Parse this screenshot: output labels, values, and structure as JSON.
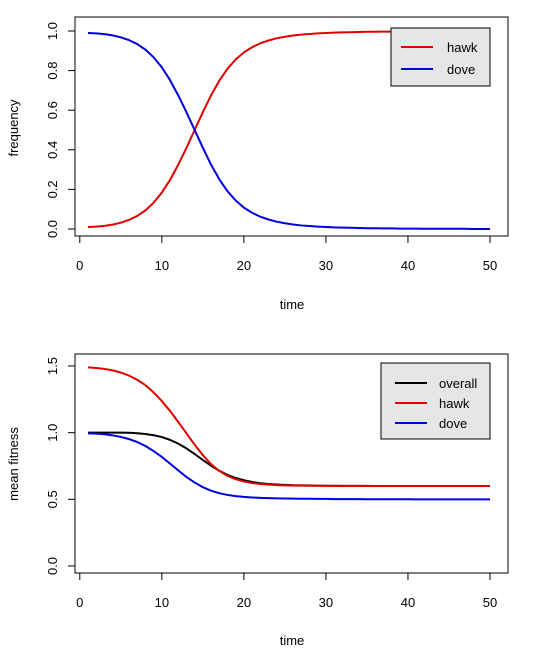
{
  "chart_data": [
    {
      "type": "line",
      "title": "",
      "xlabel": "time",
      "ylabel": "frequency",
      "xlim": [
        1,
        50
      ],
      "ylim": [
        0,
        1
      ],
      "x_ticks": [
        "0",
        "10",
        "20",
        "30",
        "40",
        "50"
      ],
      "y_ticks": [
        "0.0",
        "0.2",
        "0.4",
        "0.6",
        "0.8",
        "1.0"
      ],
      "legend": {
        "position": "top-right",
        "background": "#e6e6e6"
      },
      "x": [
        1,
        2,
        3,
        4,
        5,
        6,
        7,
        8,
        9,
        10,
        11,
        12,
        13,
        14,
        15,
        16,
        17,
        18,
        19,
        20,
        21,
        22,
        23,
        24,
        25,
        26,
        27,
        28,
        29,
        30,
        31,
        32,
        33,
        34,
        35,
        36,
        37,
        38,
        39,
        40,
        41,
        42,
        43,
        44,
        45,
        46,
        47,
        48,
        49,
        50
      ],
      "series": [
        {
          "name": "hawk",
          "color": "#e00000",
          "values": [
            0.01,
            0.012,
            0.016,
            0.022,
            0.032,
            0.046,
            0.066,
            0.094,
            0.133,
            0.184,
            0.248,
            0.325,
            0.41,
            0.5,
            0.59,
            0.675,
            0.749,
            0.809,
            0.856,
            0.892,
            0.918,
            0.938,
            0.952,
            0.963,
            0.971,
            0.977,
            0.982,
            0.985,
            0.988,
            0.99,
            0.992,
            0.993,
            0.994,
            0.995,
            0.996,
            0.996,
            0.997,
            0.997,
            0.998,
            0.998,
            0.998,
            0.999,
            0.999,
            0.999,
            0.999,
            0.999,
            0.999,
            1.0,
            1.0,
            1.0
          ]
        },
        {
          "name": "dove",
          "color": "#0000e0",
          "values": [
            0.99,
            0.988,
            0.984,
            0.978,
            0.968,
            0.954,
            0.934,
            0.906,
            0.867,
            0.816,
            0.752,
            0.675,
            0.59,
            0.5,
            0.41,
            0.325,
            0.251,
            0.191,
            0.144,
            0.108,
            0.082,
            0.062,
            0.048,
            0.037,
            0.029,
            0.023,
            0.018,
            0.015,
            0.012,
            0.01,
            0.008,
            0.007,
            0.006,
            0.005,
            0.004,
            0.004,
            0.003,
            0.003,
            0.002,
            0.002,
            0.002,
            0.001,
            0.001,
            0.001,
            0.001,
            0.001,
            0.001,
            0.0,
            0.0,
            0.0
          ]
        }
      ]
    },
    {
      "type": "line",
      "title": "",
      "xlabel": "time",
      "ylabel": "mean fitness",
      "xlim": [
        1,
        50
      ],
      "ylim": [
        0,
        1.5
      ],
      "x_ticks": [
        "0",
        "10",
        "20",
        "30",
        "40",
        "50"
      ],
      "y_ticks": [
        "0.0",
        "0.5",
        "1.0",
        "1.5"
      ],
      "legend": {
        "position": "top-right",
        "background": "#e6e6e6"
      },
      "x": [
        1,
        2,
        3,
        4,
        5,
        6,
        7,
        8,
        9,
        10,
        11,
        12,
        13,
        14,
        15,
        16,
        17,
        18,
        19,
        20,
        21,
        22,
        23,
        24,
        25,
        26,
        27,
        28,
        29,
        30,
        31,
        32,
        33,
        34,
        35,
        36,
        37,
        38,
        39,
        40,
        41,
        42,
        43,
        44,
        45,
        46,
        47,
        48,
        49,
        50
      ],
      "series": [
        {
          "name": "overall",
          "color": "#000000",
          "values": [
            1.0,
            1.0,
            1.0,
            1.0,
            1.0,
            0.999,
            0.996,
            0.99,
            0.981,
            0.967,
            0.946,
            0.918,
            0.882,
            0.84,
            0.795,
            0.752,
            0.714,
            0.683,
            0.66,
            0.643,
            0.63,
            0.621,
            0.615,
            0.611,
            0.608,
            0.606,
            0.605,
            0.604,
            0.603,
            0.602,
            0.602,
            0.601,
            0.601,
            0.601,
            0.601,
            0.6,
            0.6,
            0.6,
            0.6,
            0.6,
            0.6,
            0.6,
            0.6,
            0.6,
            0.6,
            0.6,
            0.6,
            0.6,
            0.6,
            0.6
          ]
        },
        {
          "name": "hawk",
          "color": "#e00000",
          "values": [
            1.49,
            1.485,
            1.478,
            1.467,
            1.451,
            1.428,
            1.397,
            1.356,
            1.302,
            1.237,
            1.163,
            1.08,
            0.995,
            0.91,
            0.831,
            0.764,
            0.713,
            0.676,
            0.651,
            0.634,
            0.622,
            0.615,
            0.61,
            0.607,
            0.605,
            0.604,
            0.603,
            0.602,
            0.602,
            0.601,
            0.601,
            0.601,
            0.601,
            0.601,
            0.6,
            0.6,
            0.6,
            0.6,
            0.6,
            0.6,
            0.6,
            0.6,
            0.6,
            0.6,
            0.6,
            0.6,
            0.6,
            0.6,
            0.6,
            0.6
          ]
        },
        {
          "name": "dove",
          "color": "#0000e0",
          "values": [
            0.995,
            0.993,
            0.988,
            0.98,
            0.968,
            0.952,
            0.93,
            0.9,
            0.862,
            0.818,
            0.768,
            0.717,
            0.668,
            0.626,
            0.591,
            0.565,
            0.546,
            0.533,
            0.524,
            0.518,
            0.514,
            0.511,
            0.509,
            0.507,
            0.506,
            0.505,
            0.504,
            0.504,
            0.503,
            0.503,
            0.502,
            0.502,
            0.502,
            0.502,
            0.501,
            0.501,
            0.501,
            0.501,
            0.501,
            0.501,
            0.5,
            0.5,
            0.5,
            0.5,
            0.5,
            0.5,
            0.5,
            0.5,
            0.5,
            0.5
          ]
        }
      ]
    }
  ]
}
